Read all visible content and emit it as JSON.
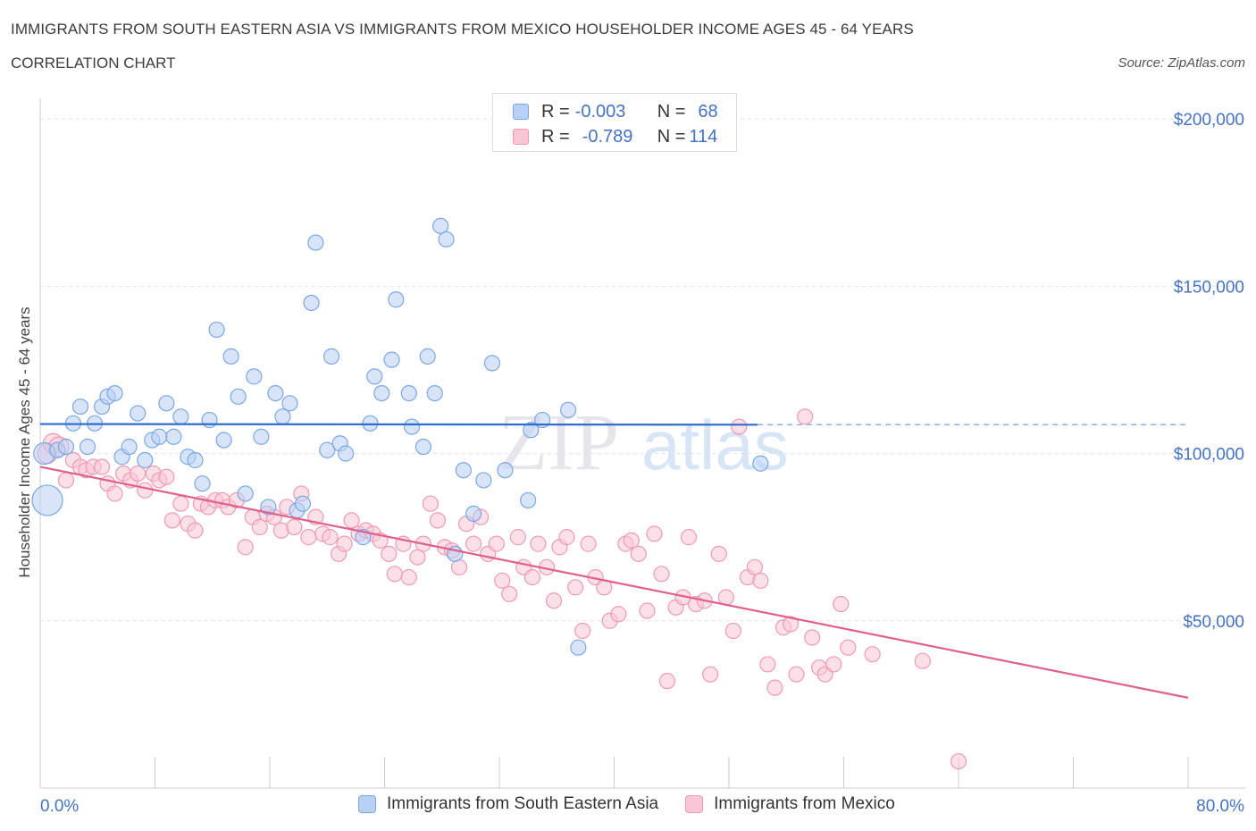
{
  "header": {
    "title": "IMMIGRANTS FROM SOUTH EASTERN ASIA VS IMMIGRANTS FROM MEXICO HOUSEHOLDER INCOME AGES 45 - 64 YEARS",
    "subtitle": "CORRELATION CHART",
    "source": "Source: ZipAtlas.com"
  },
  "legend": {
    "r_label": "R =",
    "n_label": "N =",
    "rows": [
      {
        "r": "-0.003",
        "n": "68",
        "color": "#b8d0f4",
        "border": "#7ba7e6"
      },
      {
        "r": "-0.789",
        "n": "114",
        "color": "#f9c6d6",
        "border": "#ee9ab4"
      }
    ]
  },
  "bottom_legend": [
    {
      "label": "Immigrants from South Eastern Asia",
      "color": "#b8d0f4",
      "border": "#7ba7e6"
    },
    {
      "label": "Immigrants from Mexico",
      "color": "#f9c6d6",
      "border": "#ee9ab4"
    }
  ],
  "watermark": {
    "zip": "ZIP",
    "atlas": "atlas"
  },
  "chart_data": {
    "type": "scatter",
    "title": "IMMIGRANTS FROM SOUTH EASTERN ASIA VS IMMIGRANTS FROM MEXICO HOUSEHOLDER INCOME AGES 45 - 64 YEARS",
    "ylabel": "Householder Income Ages 45 - 64 years",
    "xlim": [
      0,
      80
    ],
    "ylim": [
      0,
      200000
    ],
    "x_tick_labels": [
      "0.0%",
      "80.0%"
    ],
    "y_tick_labels": [
      "$200,000",
      "$150,000",
      "$100,000",
      "$50,000"
    ],
    "y_ticks": [
      200000,
      150000,
      100000,
      50000
    ],
    "grid": true,
    "legend_position": "top-center",
    "series": [
      {
        "name": "Immigrants from South Eastern Asia",
        "color": "#7ba7e6",
        "trend": {
          "x": [
            0,
            50
          ],
          "y": [
            108800,
            108600
          ],
          "dashed_to_x": 80
        },
        "points": [
          [
            0.3,
            100000
          ],
          [
            0.5,
            86000
          ],
          [
            1.2,
            101000
          ],
          [
            1.8,
            102000
          ],
          [
            2.3,
            109000
          ],
          [
            2.8,
            114000
          ],
          [
            3.3,
            102000
          ],
          [
            3.8,
            109000
          ],
          [
            4.3,
            114000
          ],
          [
            4.7,
            117000
          ],
          [
            5.2,
            118000
          ],
          [
            5.7,
            99000
          ],
          [
            6.2,
            102000
          ],
          [
            6.8,
            112000
          ],
          [
            7.3,
            98000
          ],
          [
            7.8,
            104000
          ],
          [
            8.3,
            105000
          ],
          [
            8.8,
            115000
          ],
          [
            9.3,
            105000
          ],
          [
            9.8,
            111000
          ],
          [
            10.3,
            99000
          ],
          [
            10.8,
            98000
          ],
          [
            11.3,
            91000
          ],
          [
            11.8,
            110000
          ],
          [
            12.3,
            137000
          ],
          [
            12.8,
            104000
          ],
          [
            13.3,
            129000
          ],
          [
            13.8,
            117000
          ],
          [
            14.3,
            88000
          ],
          [
            14.9,
            123000
          ],
          [
            15.4,
            105000
          ],
          [
            15.9,
            84000
          ],
          [
            16.4,
            118000
          ],
          [
            16.9,
            111000
          ],
          [
            17.4,
            115000
          ],
          [
            17.9,
            83000
          ],
          [
            18.3,
            85000
          ],
          [
            18.9,
            145000
          ],
          [
            19.2,
            163000
          ],
          [
            20.0,
            101000
          ],
          [
            20.3,
            129000
          ],
          [
            20.9,
            103000
          ],
          [
            21.3,
            100000
          ],
          [
            22.5,
            75000
          ],
          [
            23.0,
            109000
          ],
          [
            23.3,
            123000
          ],
          [
            23.8,
            118000
          ],
          [
            24.5,
            128000
          ],
          [
            24.8,
            146000
          ],
          [
            25.7,
            118000
          ],
          [
            25.9,
            108000
          ],
          [
            26.7,
            102000
          ],
          [
            27.0,
            129000
          ],
          [
            27.5,
            118000
          ],
          [
            27.9,
            168000
          ],
          [
            28.3,
            164000
          ],
          [
            28.9,
            70000
          ],
          [
            29.5,
            95000
          ],
          [
            30.2,
            82000
          ],
          [
            30.9,
            92000
          ],
          [
            31.5,
            127000
          ],
          [
            32.4,
            95000
          ],
          [
            34.0,
            86000
          ],
          [
            34.2,
            107000
          ],
          [
            35.0,
            110000
          ],
          [
            36.8,
            113000
          ],
          [
            37.5,
            42000
          ],
          [
            50.2,
            97000
          ]
        ]
      },
      {
        "name": "Immigrants from Mexico",
        "color": "#ee9ab4",
        "trend": {
          "x": [
            0,
            80
          ],
          "y": [
            96000,
            27000
          ]
        },
        "points": [
          [
            0.5,
            100000
          ],
          [
            0.9,
            103000
          ],
          [
            1.3,
            102000
          ],
          [
            1.8,
            92000
          ],
          [
            2.3,
            98000
          ],
          [
            2.8,
            96000
          ],
          [
            3.2,
            95000
          ],
          [
            3.7,
            96000
          ],
          [
            4.3,
            96000
          ],
          [
            4.7,
            91000
          ],
          [
            5.2,
            88000
          ],
          [
            5.8,
            94000
          ],
          [
            6.3,
            92000
          ],
          [
            6.8,
            94000
          ],
          [
            7.3,
            89000
          ],
          [
            7.9,
            94000
          ],
          [
            8.3,
            92000
          ],
          [
            8.8,
            93000
          ],
          [
            9.2,
            80000
          ],
          [
            9.8,
            85000
          ],
          [
            10.3,
            79000
          ],
          [
            10.8,
            77000
          ],
          [
            11.2,
            85000
          ],
          [
            11.7,
            84000
          ],
          [
            12.2,
            86000
          ],
          [
            12.7,
            86000
          ],
          [
            13.1,
            84000
          ],
          [
            13.7,
            86000
          ],
          [
            14.3,
            72000
          ],
          [
            14.8,
            81000
          ],
          [
            15.3,
            78000
          ],
          [
            15.8,
            82000
          ],
          [
            16.3,
            81000
          ],
          [
            16.8,
            77000
          ],
          [
            17.2,
            84000
          ],
          [
            17.7,
            78000
          ],
          [
            18.2,
            88000
          ],
          [
            18.7,
            75000
          ],
          [
            19.2,
            81000
          ],
          [
            19.7,
            76000
          ],
          [
            20.2,
            75000
          ],
          [
            20.8,
            70000
          ],
          [
            21.2,
            73000
          ],
          [
            21.7,
            80000
          ],
          [
            22.2,
            76000
          ],
          [
            22.7,
            77000
          ],
          [
            23.2,
            76000
          ],
          [
            23.7,
            74000
          ],
          [
            24.3,
            70000
          ],
          [
            24.7,
            64000
          ],
          [
            25.3,
            73000
          ],
          [
            25.7,
            63000
          ],
          [
            26.3,
            69000
          ],
          [
            26.7,
            73000
          ],
          [
            27.2,
            85000
          ],
          [
            27.7,
            80000
          ],
          [
            28.2,
            72000
          ],
          [
            28.7,
            71000
          ],
          [
            29.2,
            66000
          ],
          [
            29.7,
            79000
          ],
          [
            30.2,
            73000
          ],
          [
            30.7,
            81000
          ],
          [
            31.2,
            70000
          ],
          [
            31.8,
            73000
          ],
          [
            32.2,
            62000
          ],
          [
            32.7,
            58000
          ],
          [
            33.3,
            75000
          ],
          [
            33.7,
            66000
          ],
          [
            34.3,
            63000
          ],
          [
            34.7,
            73000
          ],
          [
            35.3,
            66000
          ],
          [
            35.8,
            56000
          ],
          [
            36.2,
            72000
          ],
          [
            36.7,
            75000
          ],
          [
            37.3,
            60000
          ],
          [
            37.8,
            47000
          ],
          [
            38.2,
            73000
          ],
          [
            38.7,
            63000
          ],
          [
            39.3,
            60000
          ],
          [
            39.7,
            50000
          ],
          [
            40.3,
            52000
          ],
          [
            40.8,
            73000
          ],
          [
            41.2,
            74000
          ],
          [
            41.7,
            70000
          ],
          [
            42.3,
            53000
          ],
          [
            42.8,
            76000
          ],
          [
            43.3,
            64000
          ],
          [
            43.7,
            32000
          ],
          [
            44.3,
            54000
          ],
          [
            44.8,
            57000
          ],
          [
            45.2,
            75000
          ],
          [
            45.7,
            55000
          ],
          [
            46.3,
            56000
          ],
          [
            46.7,
            34000
          ],
          [
            47.3,
            70000
          ],
          [
            47.8,
            57000
          ],
          [
            48.3,
            47000
          ],
          [
            48.7,
            108000
          ],
          [
            49.3,
            63000
          ],
          [
            49.8,
            66000
          ],
          [
            50.2,
            62000
          ],
          [
            50.7,
            37000
          ],
          [
            51.2,
            30000
          ],
          [
            51.8,
            48000
          ],
          [
            52.3,
            49000
          ],
          [
            52.7,
            34000
          ],
          [
            53.3,
            111000
          ],
          [
            53.8,
            45000
          ],
          [
            54.3,
            36000
          ],
          [
            54.7,
            34000
          ],
          [
            55.3,
            37000
          ],
          [
            55.8,
            55000
          ],
          [
            56.3,
            42000
          ],
          [
            58.0,
            40000
          ],
          [
            61.5,
            38000
          ],
          [
            64.0,
            8000
          ]
        ]
      }
    ]
  }
}
